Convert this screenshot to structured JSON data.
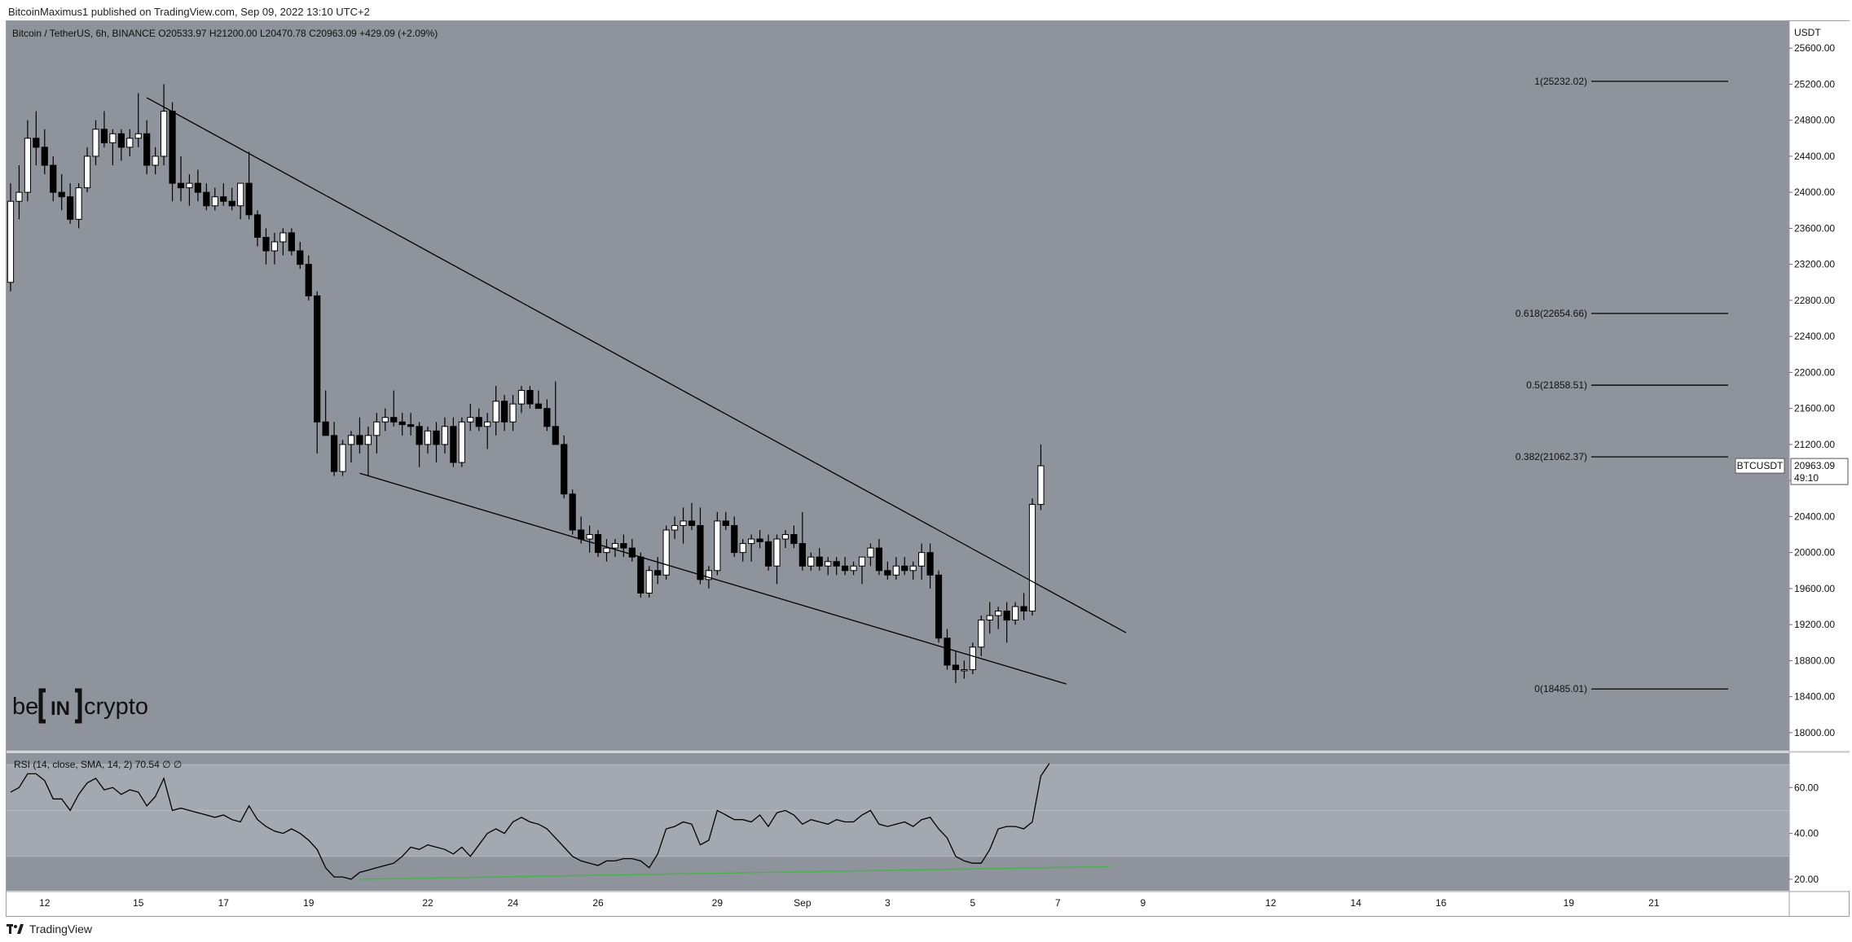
{
  "header": {
    "publisher": "BitcoinMaximus1 published on TradingView.com, Sep 09, 2022 13:10 UTC+2"
  },
  "symbol_bar": {
    "title": "Bitcoin / TetherUS, 6h, BINANCE",
    "open_label": "O",
    "open": "20533.97",
    "high_label": "H",
    "high": "21200.00",
    "low_label": "L",
    "low": "20470.78",
    "close_label": "C",
    "close": "20963.09",
    "change": "+429.09 (+2.09%)"
  },
  "price_axis": {
    "unit": "USDT",
    "ticks": [
      "25600.00",
      "25200.00",
      "24800.00",
      "24400.00",
      "24000.00",
      "23600.00",
      "23200.00",
      "22800.00",
      "22400.00",
      "22000.00",
      "21600.00",
      "21200.00",
      "20800.00",
      "20400.00",
      "20000.00",
      "19600.00",
      "19200.00",
      "18800.00",
      "18400.00",
      "18000.00"
    ],
    "ticker_badge": "BTCUSDT",
    "last_price": "20963.09",
    "countdown": "49:10",
    "last_price_value": 20963.09
  },
  "time_axis": {
    "labels": [
      "12",
      "15",
      "17",
      "19",
      "22",
      "24",
      "26",
      "29",
      "Sep",
      "3",
      "5",
      "7",
      "9",
      "12",
      "14",
      "16",
      "19",
      "21"
    ]
  },
  "watermark": {
    "text_left": "be",
    "text_mid": "IN",
    "text_right": "crypto"
  },
  "rsi_panel": {
    "label": "RSI (14, close, SMA, 14, 2)",
    "value": "70.54",
    "extra": "∅ ∅",
    "ticks": [
      "60.00",
      "40.00",
      "20.00"
    ]
  },
  "footer": {
    "brand": "TradingView"
  },
  "colors": {
    "panel_bg": "#8f939c",
    "candle_up": "#ffffff",
    "candle_down": "#000000",
    "rsi_band": "#a4a8b0",
    "rsi_divergence": "#4caf50"
  },
  "chart_data": [
    {
      "type": "candlestick",
      "title": "Bitcoin / TetherUS, 6h, BINANCE",
      "interval": "6h",
      "ylim": [
        17800,
        25900
      ],
      "y_unit": "USDT",
      "x_axis_labels": [
        "12",
        "15",
        "17",
        "19",
        "22",
        "24",
        "26",
        "29",
        "Sep",
        "3",
        "5",
        "7",
        "9",
        "12",
        "14",
        "16",
        "19",
        "21"
      ],
      "candles": [
        {
          "o": 23000,
          "h": 24100,
          "l": 22900,
          "c": 23900
        },
        {
          "o": 23900,
          "h": 24300,
          "l": 23700,
          "c": 24000
        },
        {
          "o": 24000,
          "h": 24800,
          "l": 23900,
          "c": 24600
        },
        {
          "o": 24600,
          "h": 24900,
          "l": 24300,
          "c": 24500
        },
        {
          "o": 24500,
          "h": 24700,
          "l": 24200,
          "c": 24300
        },
        {
          "o": 24300,
          "h": 24400,
          "l": 23900,
          "c": 24000
        },
        {
          "o": 24000,
          "h": 24200,
          "l": 23800,
          "c": 23950
        },
        {
          "o": 23950,
          "h": 24100,
          "l": 23650,
          "c": 23700
        },
        {
          "o": 23700,
          "h": 24100,
          "l": 23600,
          "c": 24050
        },
        {
          "o": 24050,
          "h": 24500,
          "l": 24000,
          "c": 24400
        },
        {
          "o": 24400,
          "h": 24800,
          "l": 24300,
          "c": 24700
        },
        {
          "o": 24700,
          "h": 24900,
          "l": 24500,
          "c": 24550
        },
        {
          "o": 24550,
          "h": 24700,
          "l": 24300,
          "c": 24650
        },
        {
          "o": 24650,
          "h": 24700,
          "l": 24350,
          "c": 24500
        },
        {
          "o": 24500,
          "h": 24700,
          "l": 24400,
          "c": 24600
        },
        {
          "o": 24600,
          "h": 25100,
          "l": 24500,
          "c": 24650
        },
        {
          "o": 24650,
          "h": 24800,
          "l": 24200,
          "c": 24300
        },
        {
          "o": 24300,
          "h": 24500,
          "l": 24200,
          "c": 24400
        },
        {
          "o": 24400,
          "h": 25200,
          "l": 24300,
          "c": 24900
        },
        {
          "o": 24900,
          "h": 25000,
          "l": 23900,
          "c": 24100
        },
        {
          "o": 24100,
          "h": 24400,
          "l": 23900,
          "c": 24050
        },
        {
          "o": 24050,
          "h": 24200,
          "l": 23850,
          "c": 24100
        },
        {
          "o": 24100,
          "h": 24250,
          "l": 23900,
          "c": 24000
        },
        {
          "o": 24000,
          "h": 24100,
          "l": 23800,
          "c": 23850
        },
        {
          "o": 23850,
          "h": 24050,
          "l": 23800,
          "c": 23950
        },
        {
          "o": 23950,
          "h": 24100,
          "l": 23850,
          "c": 23900
        },
        {
          "o": 23900,
          "h": 24050,
          "l": 23800,
          "c": 23850
        },
        {
          "o": 23850,
          "h": 24100,
          "l": 23700,
          "c": 24100
        },
        {
          "o": 24100,
          "h": 24450,
          "l": 23700,
          "c": 23750
        },
        {
          "o": 23750,
          "h": 23800,
          "l": 23400,
          "c": 23500
        },
        {
          "o": 23500,
          "h": 23600,
          "l": 23200,
          "c": 23350
        },
        {
          "o": 23350,
          "h": 23550,
          "l": 23200,
          "c": 23450
        },
        {
          "o": 23450,
          "h": 23600,
          "l": 23300,
          "c": 23550
        },
        {
          "o": 23550,
          "h": 23600,
          "l": 23300,
          "c": 23350
        },
        {
          "o": 23350,
          "h": 23450,
          "l": 23150,
          "c": 23200
        },
        {
          "o": 23200,
          "h": 23300,
          "l": 22800,
          "c": 22850
        },
        {
          "o": 22850,
          "h": 22900,
          "l": 21100,
          "c": 21450
        },
        {
          "o": 21450,
          "h": 21800,
          "l": 21300,
          "c": 21300
        },
        {
          "o": 21300,
          "h": 21450,
          "l": 20850,
          "c": 20900
        },
        {
          "o": 20900,
          "h": 21250,
          "l": 20850,
          "c": 21200
        },
        {
          "o": 21200,
          "h": 21350,
          "l": 21000,
          "c": 21300
        },
        {
          "o": 21300,
          "h": 21500,
          "l": 21100,
          "c": 21200
        },
        {
          "o": 21200,
          "h": 21400,
          "l": 20850,
          "c": 21300
        },
        {
          "o": 21300,
          "h": 21550,
          "l": 21100,
          "c": 21450
        },
        {
          "o": 21450,
          "h": 21600,
          "l": 21350,
          "c": 21500
        },
        {
          "o": 21500,
          "h": 21800,
          "l": 21400,
          "c": 21450
        },
        {
          "o": 21450,
          "h": 21550,
          "l": 21300,
          "c": 21420
        },
        {
          "o": 21420,
          "h": 21550,
          "l": 21300,
          "c": 21400
        },
        {
          "o": 21400,
          "h": 21450,
          "l": 20950,
          "c": 21200
        },
        {
          "o": 21200,
          "h": 21400,
          "l": 21100,
          "c": 21350
        },
        {
          "o": 21350,
          "h": 21450,
          "l": 21000,
          "c": 21200
        },
        {
          "o": 21200,
          "h": 21500,
          "l": 21100,
          "c": 21400
        },
        {
          "o": 21400,
          "h": 21500,
          "l": 20950,
          "c": 21000
        },
        {
          "o": 21000,
          "h": 21500,
          "l": 20950,
          "c": 21450
        },
        {
          "o": 21450,
          "h": 21650,
          "l": 21350,
          "c": 21500
        },
        {
          "o": 21500,
          "h": 21600,
          "l": 21350,
          "c": 21400
        },
        {
          "o": 21400,
          "h": 21550,
          "l": 21150,
          "c": 21450
        },
        {
          "o": 21450,
          "h": 21850,
          "l": 21300,
          "c": 21680
        },
        {
          "o": 21680,
          "h": 21750,
          "l": 21350,
          "c": 21450
        },
        {
          "o": 21450,
          "h": 21750,
          "l": 21350,
          "c": 21650
        },
        {
          "o": 21650,
          "h": 21850,
          "l": 21550,
          "c": 21800
        },
        {
          "o": 21800,
          "h": 21850,
          "l": 21600,
          "c": 21650
        },
        {
          "o": 21650,
          "h": 21800,
          "l": 21600,
          "c": 21600
        },
        {
          "o": 21600,
          "h": 21700,
          "l": 21350,
          "c": 21400
        },
        {
          "o": 21400,
          "h": 21900,
          "l": 21200,
          "c": 21200
        },
        {
          "o": 21200,
          "h": 21300,
          "l": 20600,
          "c": 20650
        },
        {
          "o": 20650,
          "h": 20700,
          "l": 20200,
          "c": 20250
        },
        {
          "o": 20250,
          "h": 20400,
          "l": 20100,
          "c": 20150
        },
        {
          "o": 20150,
          "h": 20300,
          "l": 20000,
          "c": 20200
        },
        {
          "o": 20200,
          "h": 20250,
          "l": 19950,
          "c": 20000
        },
        {
          "o": 20000,
          "h": 20150,
          "l": 19900,
          "c": 20050
        },
        {
          "o": 20050,
          "h": 20150,
          "l": 19950,
          "c": 20100
        },
        {
          "o": 20100,
          "h": 20200,
          "l": 19950,
          "c": 20050
        },
        {
          "o": 20050,
          "h": 20150,
          "l": 19900,
          "c": 19950
        },
        {
          "o": 19950,
          "h": 20000,
          "l": 19500,
          "c": 19550
        },
        {
          "o": 19550,
          "h": 19850,
          "l": 19500,
          "c": 19800
        },
        {
          "o": 19800,
          "h": 19950,
          "l": 19650,
          "c": 19750
        },
        {
          "o": 19750,
          "h": 20300,
          "l": 19700,
          "c": 20250
        },
        {
          "o": 20250,
          "h": 20400,
          "l": 20150,
          "c": 20300
        },
        {
          "o": 20300,
          "h": 20500,
          "l": 20100,
          "c": 20350
        },
        {
          "o": 20350,
          "h": 20550,
          "l": 20250,
          "c": 20300
        },
        {
          "o": 20300,
          "h": 20500,
          "l": 19650,
          "c": 19700
        },
        {
          "o": 19700,
          "h": 19850,
          "l": 19600,
          "c": 19800
        },
        {
          "o": 19800,
          "h": 20450,
          "l": 19750,
          "c": 20350
        },
        {
          "o": 20350,
          "h": 20450,
          "l": 20250,
          "c": 20300
        },
        {
          "o": 20300,
          "h": 20400,
          "l": 19950,
          "c": 20000
        },
        {
          "o": 20000,
          "h": 20150,
          "l": 19900,
          "c": 20100
        },
        {
          "o": 20100,
          "h": 20200,
          "l": 19900,
          "c": 20150
        },
        {
          "o": 20150,
          "h": 20250,
          "l": 20050,
          "c": 20120
        },
        {
          "o": 20120,
          "h": 20200,
          "l": 19800,
          "c": 19850
        },
        {
          "o": 19850,
          "h": 20200,
          "l": 19650,
          "c": 20150
        },
        {
          "o": 20150,
          "h": 20250,
          "l": 20050,
          "c": 20200
        },
        {
          "o": 20200,
          "h": 20300,
          "l": 20050,
          "c": 20100
        },
        {
          "o": 20100,
          "h": 20450,
          "l": 19800,
          "c": 19850
        },
        {
          "o": 19850,
          "h": 20000,
          "l": 19800,
          "c": 19950
        },
        {
          "o": 19950,
          "h": 20050,
          "l": 19800,
          "c": 19850
        },
        {
          "o": 19850,
          "h": 19950,
          "l": 19750,
          "c": 19900
        },
        {
          "o": 19900,
          "h": 19950,
          "l": 19750,
          "c": 19850
        },
        {
          "o": 19850,
          "h": 19950,
          "l": 19750,
          "c": 19800
        },
        {
          "o": 19800,
          "h": 19900,
          "l": 19750,
          "c": 19850
        },
        {
          "o": 19850,
          "h": 19950,
          "l": 19650,
          "c": 19950
        },
        {
          "o": 19950,
          "h": 20100,
          "l": 19850,
          "c": 20050
        },
        {
          "o": 20050,
          "h": 20150,
          "l": 19750,
          "c": 19800
        },
        {
          "o": 19800,
          "h": 19900,
          "l": 19700,
          "c": 19750
        },
        {
          "o": 19750,
          "h": 19950,
          "l": 19700,
          "c": 19850
        },
        {
          "o": 19850,
          "h": 19950,
          "l": 19750,
          "c": 19800
        },
        {
          "o": 19800,
          "h": 19900,
          "l": 19700,
          "c": 19850
        },
        {
          "o": 19850,
          "h": 20100,
          "l": 19700,
          "c": 20000
        },
        {
          "o": 20000,
          "h": 20100,
          "l": 19600,
          "c": 19750
        },
        {
          "o": 19750,
          "h": 19800,
          "l": 19000,
          "c": 19050
        },
        {
          "o": 19050,
          "h": 19150,
          "l": 18700,
          "c": 18750
        },
        {
          "o": 18750,
          "h": 18900,
          "l": 18550,
          "c": 18700
        },
        {
          "o": 18700,
          "h": 18800,
          "l": 18600,
          "c": 18700
        },
        {
          "o": 18700,
          "h": 19000,
          "l": 18650,
          "c": 18950
        },
        {
          "o": 18950,
          "h": 19300,
          "l": 18850,
          "c": 19250
        },
        {
          "o": 19250,
          "h": 19450,
          "l": 19100,
          "c": 19300
        },
        {
          "o": 19300,
          "h": 19400,
          "l": 19150,
          "c": 19350
        },
        {
          "o": 19350,
          "h": 19450,
          "l": 19000,
          "c": 19250
        },
        {
          "o": 19250,
          "h": 19450,
          "l": 19200,
          "c": 19400
        },
        {
          "o": 19400,
          "h": 19550,
          "l": 19250,
          "c": 19350
        },
        {
          "o": 19350,
          "h": 20600,
          "l": 19300,
          "c": 20533.97
        },
        {
          "o": 20533.97,
          "h": 21200,
          "l": 20470.78,
          "c": 20963.09
        }
      ],
      "fibonacci_levels": [
        {
          "label": "1(25232.02)",
          "value": 25232.02
        },
        {
          "label": "0.618(22654.66)",
          "value": 22654.66
        },
        {
          "label": "0.5(21858.51)",
          "value": 21858.51
        },
        {
          "label": "0.382(21062.37)",
          "value": 21062.37
        },
        {
          "label": "0(18485.01)",
          "value": 18485.01
        }
      ],
      "trendlines": [
        {
          "name": "descending-resistance",
          "from": {
            "bar": 16,
            "price": 25050
          },
          "to": {
            "bar": 131,
            "price": 19110
          }
        },
        {
          "name": "descending-support",
          "from": {
            "bar": 41,
            "price": 20880
          },
          "to": {
            "bar": 124,
            "price": 18540
          }
        }
      ]
    },
    {
      "type": "line",
      "title": "RSI (14, close, SMA, 14, 2)",
      "ylim": [
        15,
        75
      ],
      "bands": {
        "upper": 70,
        "middle": 50,
        "lower": 30
      },
      "values": [
        58,
        60,
        66,
        66,
        63,
        55,
        55,
        50,
        57,
        62,
        64,
        59,
        60,
        57,
        59,
        58,
        52,
        56,
        64,
        50,
        51,
        50,
        49,
        48,
        47,
        48,
        46,
        45,
        52,
        46,
        43,
        41,
        40,
        42,
        40,
        37,
        33,
        25,
        21,
        21,
        20,
        23,
        24,
        25,
        26,
        27,
        30,
        34,
        33,
        35,
        34,
        33,
        31,
        34,
        30,
        35,
        40,
        42,
        40,
        45,
        47,
        45,
        44,
        42,
        38,
        34,
        30,
        28,
        27,
        26,
        28,
        28,
        29,
        29,
        28,
        25,
        31,
        42,
        43,
        45,
        44,
        35,
        37,
        50,
        48,
        46,
        46,
        45,
        48,
        43,
        49,
        50,
        48,
        44,
        46,
        45,
        44,
        46,
        45,
        45,
        48,
        50,
        44,
        43,
        44,
        45,
        43,
        46,
        47,
        42,
        38,
        30,
        28,
        27,
        27,
        33,
        42,
        43,
        43,
        42,
        45,
        65,
        70.54
      ],
      "divergence_line": {
        "from": {
          "bar": 41,
          "value": 20
        },
        "to": {
          "bar": 129,
          "value": 25.5
        }
      }
    }
  ]
}
